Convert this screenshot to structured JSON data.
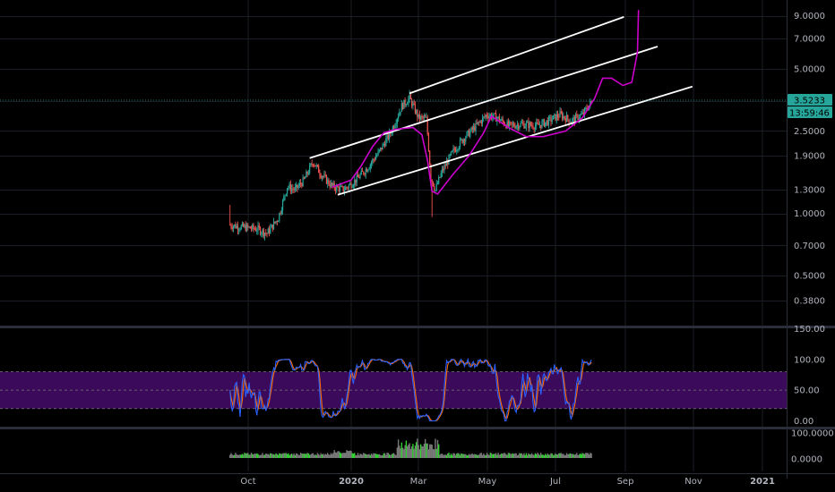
{
  "chart_data": {
    "type": "candlestick",
    "panes": {
      "price": {
        "scale": "log",
        "ylim": [
          0.34,
          9.4
        ],
        "y_ticks": [
          "9.0000",
          "7.0000",
          "5.0000",
          "3.5000",
          "2.5000",
          "1.9000",
          "1.3000",
          "1.0000",
          "0.7000",
          "0.5000",
          "0.3800"
        ],
        "last_price": "3.5233",
        "countdown": "13:59:46"
      },
      "oscillator": {
        "ylim": [
          -8,
          152
        ],
        "y_ticks": [
          "150.00",
          "100.00",
          "50.00",
          "0.00"
        ],
        "band": [
          20,
          80
        ]
      },
      "volume": {
        "y_ticks": [
          "100.0000",
          "0.0000"
        ]
      }
    },
    "x_ticks": [
      "Oct",
      "2020",
      "Mar",
      "May",
      "Jul",
      "Sep",
      "Nov",
      "2021"
    ],
    "channel_lines": [
      {
        "x": [
          "2020-02-22",
          "2020-08-31"
        ],
        "y": [
          3.8,
          8.9
        ]
      },
      {
        "x": [
          "2019-11-25",
          "2020-09-30"
        ],
        "y": [
          1.85,
          6.4
        ]
      },
      {
        "x": [
          "2019-12-20",
          "2020-10-31"
        ],
        "y": [
          1.23,
          4.1
        ]
      }
    ]
  },
  "colors": {
    "background": "#000000",
    "bull": "#26a69a",
    "bear": "#ef5350",
    "projection": "#cc00cc",
    "oscillator_k": "#2962ff",
    "oscillator_d": "#ff6d00",
    "band_fill": "#3b0a5a",
    "volume_up": "#2ed52e",
    "volume_down": "#787878",
    "price_tag": "#26a69a",
    "axis_text": "#b2b5be"
  }
}
